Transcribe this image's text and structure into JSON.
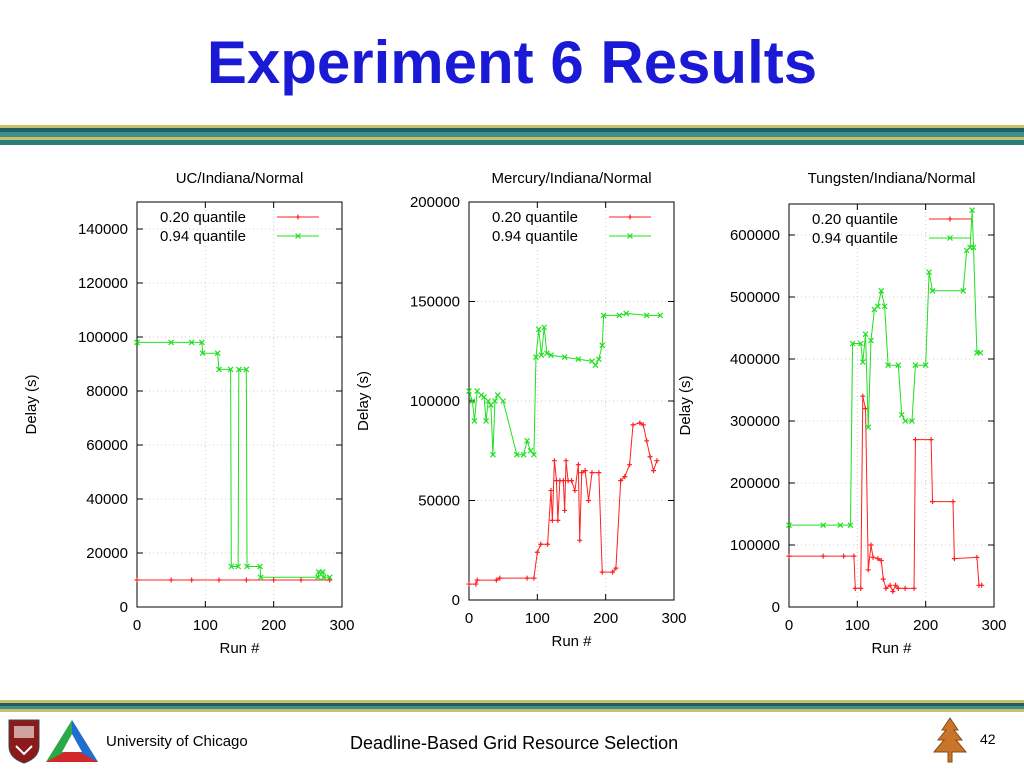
{
  "slide": {
    "title": "Experiment 6 Results",
    "footer_left": "University of Chicago",
    "footer_center": "Deadline-Based Grid Resource Selection",
    "page_number": "42"
  },
  "colors": {
    "title": "#1a1ad6",
    "series_020": "#ff2020",
    "series_094": "#20e020"
  },
  "chart_data": [
    {
      "type": "line",
      "title": "UC/Indiana/Normal",
      "xlabel": "Run #",
      "ylabel": "Delay (s)",
      "xlim": [
        0,
        300
      ],
      "ylim": [
        0,
        150000
      ],
      "xticks": [
        0,
        100,
        200,
        300
      ],
      "yticks": [
        0,
        20000,
        40000,
        60000,
        80000,
        100000,
        120000,
        140000
      ],
      "legend": "top-right",
      "series": [
        {
          "name": "0.20 quantile",
          "points": [
            [
              0,
              10000
            ],
            [
              50,
              10000
            ],
            [
              80,
              10000
            ],
            [
              120,
              10000
            ],
            [
              160,
              10000
            ],
            [
              200,
              10000
            ],
            [
              240,
              10000
            ],
            [
              282,
              10000
            ]
          ]
        },
        {
          "name": "0.94 quantile",
          "points": [
            [
              0,
              98000
            ],
            [
              50,
              98000
            ],
            [
              80,
              98000
            ],
            [
              95,
              98000
            ],
            [
              96,
              94000
            ],
            [
              118,
              94000
            ],
            [
              120,
              88000
            ],
            [
              137,
              88000
            ],
            [
              138,
              15000
            ],
            [
              148,
              15000
            ],
            [
              149,
              88000
            ],
            [
              160,
              88000
            ],
            [
              161,
              15000
            ],
            [
              180,
              15000
            ],
            [
              181,
              11000
            ],
            [
              265,
              11000
            ],
            [
              266,
              13000
            ],
            [
              272,
              13000
            ],
            [
              273,
              11000
            ],
            [
              282,
              11000
            ]
          ]
        }
      ]
    },
    {
      "type": "line",
      "title": "Mercury/Indiana/Normal",
      "xlabel": "Run #",
      "ylabel": "Delay (s)",
      "xlim": [
        0,
        300
      ],
      "ylim": [
        0,
        200000
      ],
      "xticks": [
        0,
        100,
        200,
        300
      ],
      "yticks": [
        0,
        50000,
        100000,
        150000,
        200000
      ],
      "legend": "top-right",
      "series": [
        {
          "name": "0.20 quantile",
          "points": [
            [
              0,
              8000
            ],
            [
              10,
              8000
            ],
            [
              12,
              10000
            ],
            [
              40,
              10000
            ],
            [
              45,
              11000
            ],
            [
              85,
              11000
            ],
            [
              95,
              11000
            ],
            [
              100,
              24000
            ],
            [
              105,
              28000
            ],
            [
              115,
              28000
            ],
            [
              120,
              55000
            ],
            [
              122,
              40000
            ],
            [
              125,
              70000
            ],
            [
              128,
              60000
            ],
            [
              130,
              40000
            ],
            [
              133,
              60000
            ],
            [
              138,
              60000
            ],
            [
              140,
              45000
            ],
            [
              142,
              70000
            ],
            [
              145,
              60000
            ],
            [
              150,
              60000
            ],
            [
              155,
              55000
            ],
            [
              160,
              68000
            ],
            [
              162,
              30000
            ],
            [
              165,
              64000
            ],
            [
              170,
              65000
            ],
            [
              175,
              50000
            ],
            [
              180,
              64000
            ],
            [
              190,
              64000
            ],
            [
              195,
              14000
            ],
            [
              210,
              14000
            ],
            [
              215,
              16000
            ],
            [
              222,
              60000
            ],
            [
              228,
              62000
            ],
            [
              235,
              68000
            ],
            [
              240,
              88000
            ],
            [
              250,
              89000
            ],
            [
              255,
              88000
            ],
            [
              260,
              80000
            ],
            [
              265,
              72000
            ],
            [
              270,
              65000
            ],
            [
              275,
              70000
            ]
          ]
        },
        {
          "name": "0.94 quantile",
          "points": [
            [
              0,
              105000
            ],
            [
              5,
              100000
            ],
            [
              8,
              90000
            ],
            [
              12,
              105000
            ],
            [
              18,
              103000
            ],
            [
              22,
              102000
            ],
            [
              25,
              90000
            ],
            [
              28,
              100000
            ],
            [
              32,
              98000
            ],
            [
              35,
              73000
            ],
            [
              38,
              100000
            ],
            [
              42,
              103000
            ],
            [
              50,
              100000
            ],
            [
              70,
              73000
            ],
            [
              80,
              73000
            ],
            [
              85,
              80000
            ],
            [
              90,
              75000
            ],
            [
              95,
              73000
            ],
            [
              98,
              122000
            ],
            [
              102,
              136000
            ],
            [
              106,
              123000
            ],
            [
              110,
              137000
            ],
            [
              114,
              124000
            ],
            [
              120,
              123000
            ],
            [
              140,
              122000
            ],
            [
              160,
              121000
            ],
            [
              180,
              120000
            ],
            [
              185,
              118000
            ],
            [
              190,
              121000
            ],
            [
              195,
              128000
            ],
            [
              197,
              143000
            ],
            [
              220,
              143000
            ],
            [
              230,
              144000
            ],
            [
              260,
              143000
            ],
            [
              280,
              143000
            ]
          ]
        }
      ]
    },
    {
      "type": "line",
      "title": "Tungsten/Indiana/Normal",
      "xlabel": "Run #",
      "ylabel": "Delay (s)",
      "xlim": [
        0,
        300
      ],
      "ylim": [
        0,
        650000
      ],
      "xticks": [
        0,
        100,
        200,
        300
      ],
      "yticks": [
        0,
        100000,
        200000,
        300000,
        400000,
        500000,
        600000
      ],
      "legend": "top-right",
      "series": [
        {
          "name": "0.20 quantile",
          "points": [
            [
              0,
              82000
            ],
            [
              50,
              82000
            ],
            [
              80,
              82000
            ],
            [
              95,
              82000
            ],
            [
              97,
              30000
            ],
            [
              105,
              30000
            ],
            [
              108,
              340000
            ],
            [
              112,
              320000
            ],
            [
              116,
              60000
            ],
            [
              120,
              100000
            ],
            [
              123,
              80000
            ],
            [
              130,
              78000
            ],
            [
              135,
              75000
            ],
            [
              138,
              45000
            ],
            [
              142,
              30000
            ],
            [
              148,
              35000
            ],
            [
              152,
              25000
            ],
            [
              156,
              35000
            ],
            [
              160,
              30000
            ],
            [
              170,
              30000
            ],
            [
              183,
              30000
            ],
            [
              185,
              270000
            ],
            [
              208,
              270000
            ],
            [
              210,
              170000
            ],
            [
              240,
              170000
            ],
            [
              242,
              78000
            ],
            [
              275,
              80000
            ],
            [
              278,
              35000
            ],
            [
              282,
              35000
            ]
          ]
        },
        {
          "name": "0.94 quantile",
          "points": [
            [
              0,
              132000
            ],
            [
              50,
              132000
            ],
            [
              75,
              132000
            ],
            [
              90,
              132000
            ],
            [
              93,
              425000
            ],
            [
              105,
              425000
            ],
            [
              108,
              395000
            ],
            [
              112,
              440000
            ],
            [
              116,
              290000
            ],
            [
              120,
              430000
            ],
            [
              125,
              480000
            ],
            [
              130,
              485000
            ],
            [
              135,
              510000
            ],
            [
              140,
              485000
            ],
            [
              145,
              390000
            ],
            [
              160,
              390000
            ],
            [
              165,
              310000
            ],
            [
              170,
              300000
            ],
            [
              180,
              300000
            ],
            [
              185,
              390000
            ],
            [
              200,
              390000
            ],
            [
              205,
              540000
            ],
            [
              210,
              510000
            ],
            [
              255,
              510000
            ],
            [
              260,
              575000
            ],
            [
              265,
              580000
            ],
            [
              268,
              640000
            ],
            [
              270,
              580000
            ],
            [
              275,
              410000
            ],
            [
              280,
              410000
            ]
          ]
        }
      ]
    }
  ]
}
